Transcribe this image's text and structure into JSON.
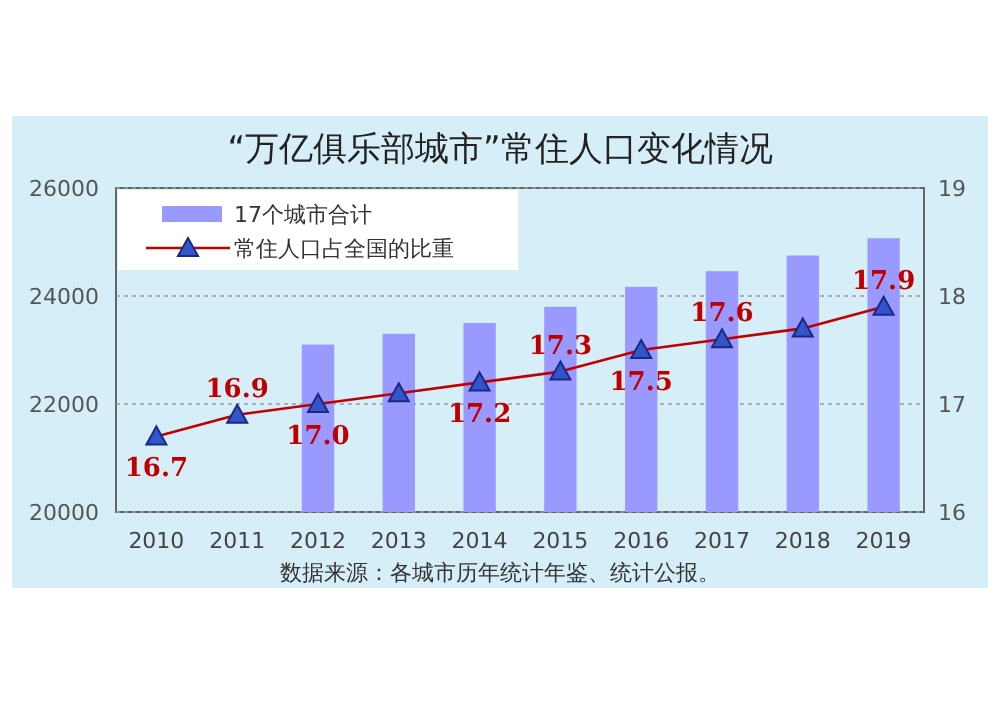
{
  "chart_data": {
    "type": "bar",
    "title": "“万亿俱乐部城市”常住人口变化情况",
    "categories": [
      "2010",
      "2011",
      "2012",
      "2013",
      "2014",
      "2015",
      "2016",
      "2017",
      "2018",
      "2019"
    ],
    "series": [
      {
        "name": "17个城市合计",
        "color": "#9999ff",
        "values": [
          null,
          null,
          23100,
          23300,
          23500,
          23800,
          24170,
          24460,
          24750,
          25070
        ]
      },
      {
        "name": "常住人口占全国的比重",
        "type": "line",
        "axis": "y2",
        "color": "#c00000",
        "marker": "triangle",
        "values": [
          16.7,
          16.9,
          17.0,
          17.1,
          17.2,
          17.3,
          17.5,
          17.6,
          17.7,
          17.9
        ],
        "value_labels": [
          "16.7",
          "16.9",
          "17.0",
          null,
          "17.2",
          "17.3",
          "17.5",
          "17.6",
          null,
          "17.9"
        ]
      }
    ],
    "ylim": [
      20000,
      26000
    ],
    "yticks": [
      20000,
      22000,
      24000,
      26000
    ],
    "y2lim": [
      16,
      19
    ],
    "y2ticks": [
      16,
      17,
      18,
      19
    ],
    "grid": "y",
    "legend": "top left",
    "annotations": [
      "数据来源：各城市历年统计年鉴、统计公报。"
    ]
  }
}
